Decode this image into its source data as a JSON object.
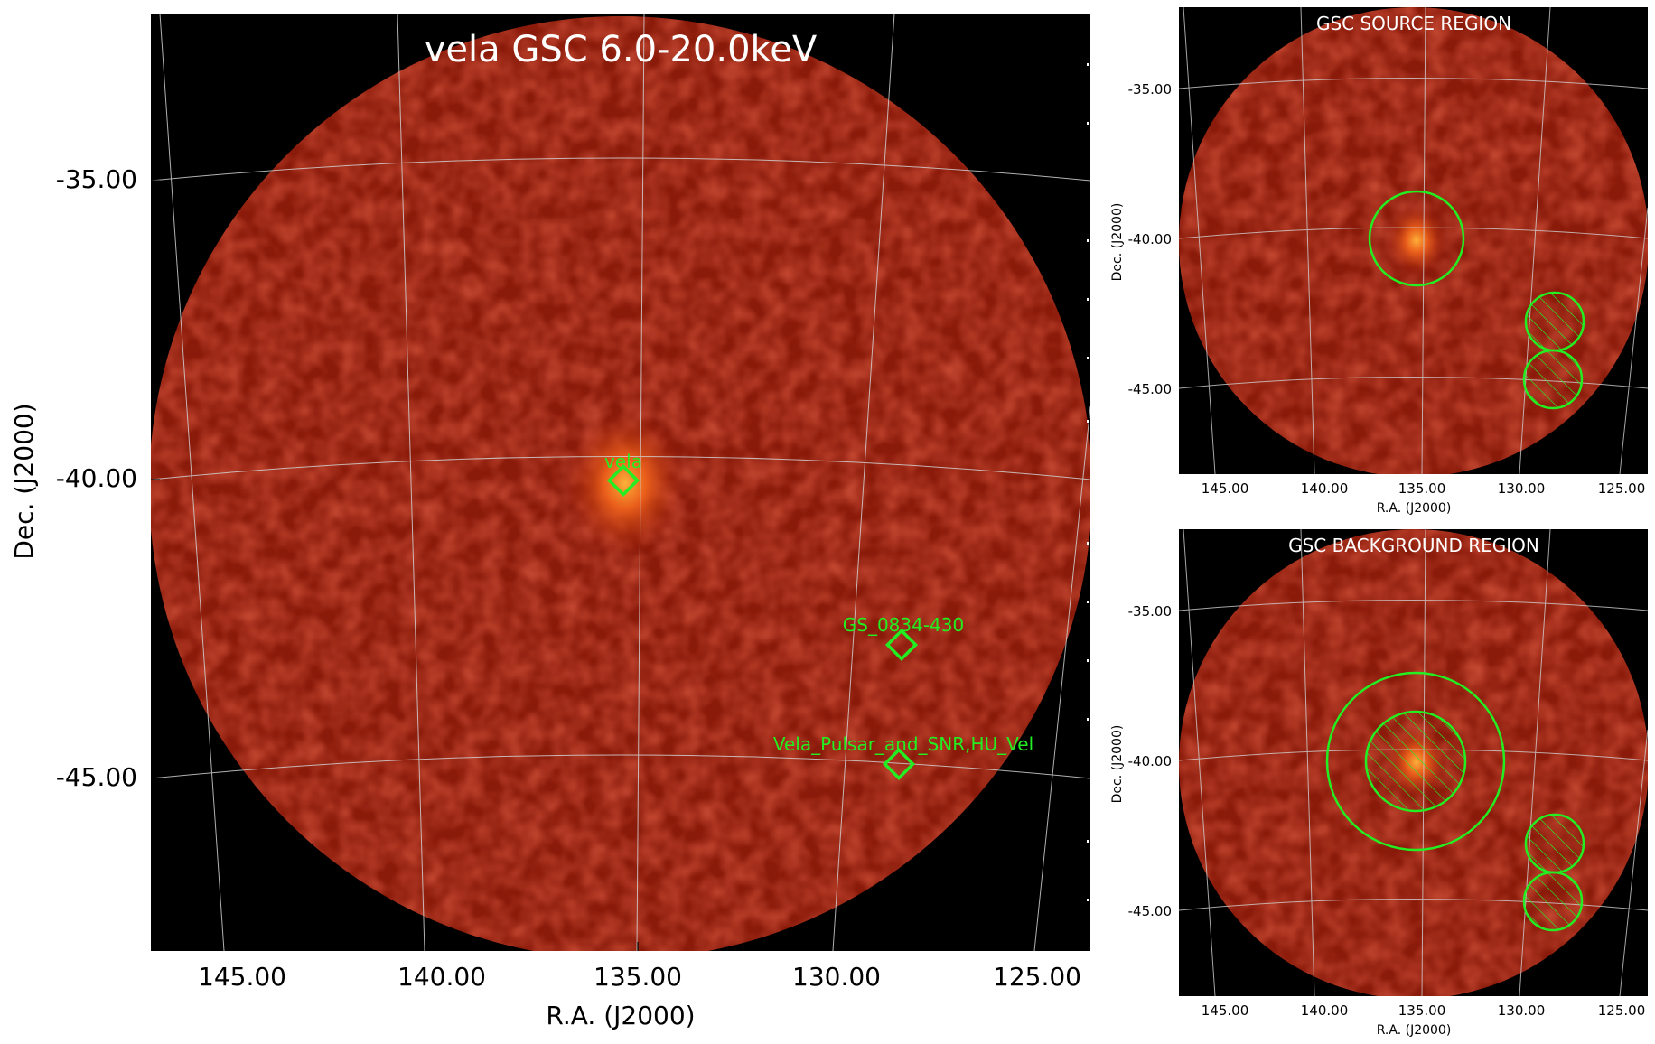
{
  "colors": {
    "background": "#000000",
    "image_red": "#8a1a0a",
    "source_glow": "#ff7a1a",
    "region_green": "#22ee22",
    "grid": "#cccccc",
    "title_text": "#ffffff"
  },
  "main_panel": {
    "title": "vela GSC 6.0-20.0keV",
    "xlabel": "R.A. (J2000)",
    "ylabel": "Dec. (J2000)",
    "xticks": [
      "145.00",
      "140.00",
      "135.00",
      "130.00",
      "125.00"
    ],
    "yticks": [
      "-35.00",
      "-40.00",
      "-45.00"
    ],
    "sources": [
      {
        "label": "vela"
      },
      {
        "label": "GS_0834-430"
      },
      {
        "label": "Vela_Pulsar_and_SNR,HU_Vel"
      }
    ]
  },
  "source_panel": {
    "title": "GSC SOURCE REGION",
    "xlabel": "R.A. (J2000)",
    "ylabel": "Dec. (J2000)",
    "xticks": [
      "145.00",
      "140.00",
      "135.00",
      "130.00",
      "125.00"
    ],
    "yticks": [
      "-35.00",
      "-40.00",
      "-45.00"
    ]
  },
  "background_panel": {
    "title": "GSC BACKGROUND REGION",
    "xlabel": "R.A. (J2000)",
    "ylabel": "Dec. (J2000)",
    "xticks": [
      "145.00",
      "140.00",
      "135.00",
      "130.00",
      "125.00"
    ],
    "yticks": [
      "-35.00",
      "-40.00",
      "-45.00"
    ]
  }
}
